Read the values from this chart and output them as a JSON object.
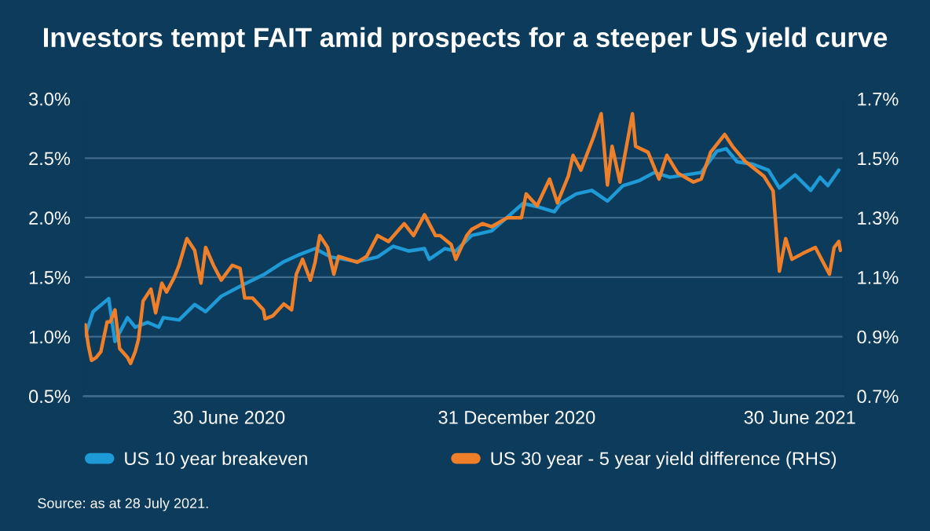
{
  "chart_data": {
    "type": "line",
    "title": "Investors tempt FAIT amid prospects for a steeper US yield curve",
    "annotations": [
      "Source: as at 28 July 2021."
    ],
    "xlim": [
      "2020-03-29",
      "2021-07-28"
    ],
    "xticks": [
      {
        "value": "2020-06-30",
        "label": "30 June 2020"
      },
      {
        "value": "2020-12-31",
        "label": "31 December 2020"
      },
      {
        "value": "2021-06-30",
        "label": "30 June 2021"
      }
    ],
    "ylim": [
      0.5,
      3.0
    ],
    "yticks": [
      {
        "value": 0.5,
        "label": "0.5%"
      },
      {
        "value": 1.0,
        "label": "1.0%"
      },
      {
        "value": 1.5,
        "label": "1.5%"
      },
      {
        "value": 2.0,
        "label": "2.0%"
      },
      {
        "value": 2.5,
        "label": "2.5%"
      },
      {
        "value": 3.0,
        "label": "3.0%"
      }
    ],
    "y2lim": [
      0.7,
      1.7
    ],
    "y2ticks": [
      {
        "value": 0.7,
        "label": "0.7%"
      },
      {
        "value": 0.9,
        "label": "0.9%"
      },
      {
        "value": 1.1,
        "label": "1.1%"
      },
      {
        "value": 1.3,
        "label": "1.3%"
      },
      {
        "value": 1.5,
        "label": "1.5%"
      },
      {
        "value": 1.7,
        "label": "1.7%"
      }
    ],
    "grid": "y",
    "legend": "bottom",
    "marker": "none",
    "line_style": "solid",
    "series": [
      {
        "name": "US 10 year breakeven",
        "color": "#1e9ad6",
        "x": [
          "2020-03-30",
          "2020-04-04",
          "2020-04-14",
          "2020-04-18",
          "2020-04-26",
          "2020-05-01",
          "2020-05-09",
          "2020-05-16",
          "2020-05-19",
          "2020-05-29",
          "2020-06-08",
          "2020-06-15",
          "2020-06-25",
          "2020-07-08",
          "2020-07-22",
          "2020-08-04",
          "2020-08-14",
          "2020-08-24",
          "2020-09-03",
          "2020-09-20",
          "2020-10-03",
          "2020-10-13",
          "2020-10-23",
          "2020-11-02",
          "2020-11-05",
          "2020-11-15",
          "2020-11-22",
          "2020-12-02",
          "2020-12-15",
          "2021-01-04",
          "2021-01-14",
          "2021-01-24",
          "2021-01-28",
          "2021-02-07",
          "2021-02-17",
          "2021-02-27",
          "2021-03-09",
          "2021-03-19",
          "2021-03-29",
          "2021-04-08",
          "2021-04-18",
          "2021-04-28",
          "2021-05-08",
          "2021-05-14",
          "2021-05-21",
          "2021-05-31",
          "2021-06-10",
          "2021-06-17",
          "2021-06-27",
          "2021-07-07",
          "2021-07-13",
          "2021-07-18",
          "2021-07-25"
        ],
        "values": [
          1.01,
          1.21,
          1.32,
          0.96,
          1.16,
          1.08,
          1.12,
          1.08,
          1.16,
          1.14,
          1.27,
          1.21,
          1.34,
          1.43,
          1.52,
          1.63,
          1.69,
          1.74,
          1.67,
          1.63,
          1.67,
          1.76,
          1.72,
          1.74,
          1.65,
          1.74,
          1.72,
          1.85,
          1.89,
          2.12,
          2.09,
          2.05,
          2.12,
          2.2,
          2.23,
          2.14,
          2.27,
          2.31,
          2.38,
          2.34,
          2.36,
          2.38,
          2.56,
          2.58,
          2.47,
          2.45,
          2.4,
          2.25,
          2.36,
          2.23,
          2.34,
          2.27,
          2.4
        ]
      },
      {
        "name": "US 30 year - 5 year yield difference (RHS)",
        "color": "#f07f2a",
        "axis": "y2",
        "x": [
          "2020-03-30",
          "2020-04-01",
          "2020-04-03",
          "2020-04-06",
          "2020-04-09",
          "2020-04-13",
          "2020-04-15",
          "2020-04-18",
          "2020-04-21",
          "2020-04-26",
          "2020-04-28",
          "2020-05-01",
          "2020-05-03",
          "2020-05-06",
          "2020-05-11",
          "2020-05-14",
          "2020-05-18",
          "2020-05-21",
          "2020-05-26",
          "2020-05-29",
          "2020-06-03",
          "2020-06-08",
          "2020-06-12",
          "2020-06-15",
          "2020-06-20",
          "2020-06-25",
          "2020-07-02",
          "2020-07-07",
          "2020-07-10",
          "2020-07-15",
          "2020-07-22",
          "2020-07-23",
          "2020-07-28",
          "2020-08-04",
          "2020-08-09",
          "2020-08-12",
          "2020-08-16",
          "2020-08-21",
          "2020-08-24",
          "2020-08-27",
          "2020-09-01",
          "2020-09-05",
          "2020-09-08",
          "2020-09-20",
          "2020-09-26",
          "2020-10-03",
          "2020-10-10",
          "2020-10-20",
          "2020-10-26",
          "2020-11-02",
          "2020-11-09",
          "2020-11-12",
          "2020-11-19",
          "2020-11-22",
          "2020-11-29",
          "2020-12-02",
          "2020-12-09",
          "2020-12-15",
          "2020-12-25",
          "2021-01-03",
          "2021-01-06",
          "2021-01-13",
          "2021-01-21",
          "2021-01-26",
          "2021-02-02",
          "2021-02-05",
          "2021-02-10",
          "2021-02-18",
          "2021-02-23",
          "2021-02-27",
          "2021-03-02",
          "2021-03-07",
          "2021-03-15",
          "2021-03-17",
          "2021-03-25",
          "2021-04-01",
          "2021-04-06",
          "2021-04-13",
          "2021-04-23",
          "2021-04-28",
          "2021-05-04",
          "2021-05-13",
          "2021-05-18",
          "2021-05-26",
          "2021-06-07",
          "2021-06-13",
          "2021-06-17",
          "2021-06-21",
          "2021-06-25",
          "2021-07-02",
          "2021-07-10",
          "2021-07-15",
          "2021-07-19",
          "2021-07-22",
          "2021-07-25",
          "2021-07-26"
        ],
        "values": [
          0.94,
          0.87,
          0.82,
          0.83,
          0.85,
          0.95,
          0.95,
          0.99,
          0.86,
          0.83,
          0.81,
          0.85,
          0.89,
          1.02,
          1.06,
          0.98,
          1.08,
          1.05,
          1.1,
          1.14,
          1.23,
          1.19,
          1.08,
          1.2,
          1.14,
          1.09,
          1.14,
          1.13,
          1.03,
          1.03,
          0.99,
          0.96,
          0.97,
          1.01,
          0.99,
          1.11,
          1.16,
          1.09,
          1.15,
          1.24,
          1.2,
          1.11,
          1.17,
          1.15,
          1.17,
          1.24,
          1.22,
          1.28,
          1.24,
          1.31,
          1.24,
          1.24,
          1.21,
          1.16,
          1.24,
          1.26,
          1.28,
          1.27,
          1.3,
          1.3,
          1.38,
          1.34,
          1.43,
          1.35,
          1.44,
          1.51,
          1.46,
          1.57,
          1.65,
          1.41,
          1.54,
          1.42,
          1.65,
          1.54,
          1.52,
          1.43,
          1.51,
          1.45,
          1.42,
          1.43,
          1.52,
          1.58,
          1.54,
          1.49,
          1.44,
          1.39,
          1.12,
          1.23,
          1.16,
          1.18,
          1.2,
          1.15,
          1.11,
          1.2,
          1.22,
          1.19
        ]
      }
    ]
  }
}
